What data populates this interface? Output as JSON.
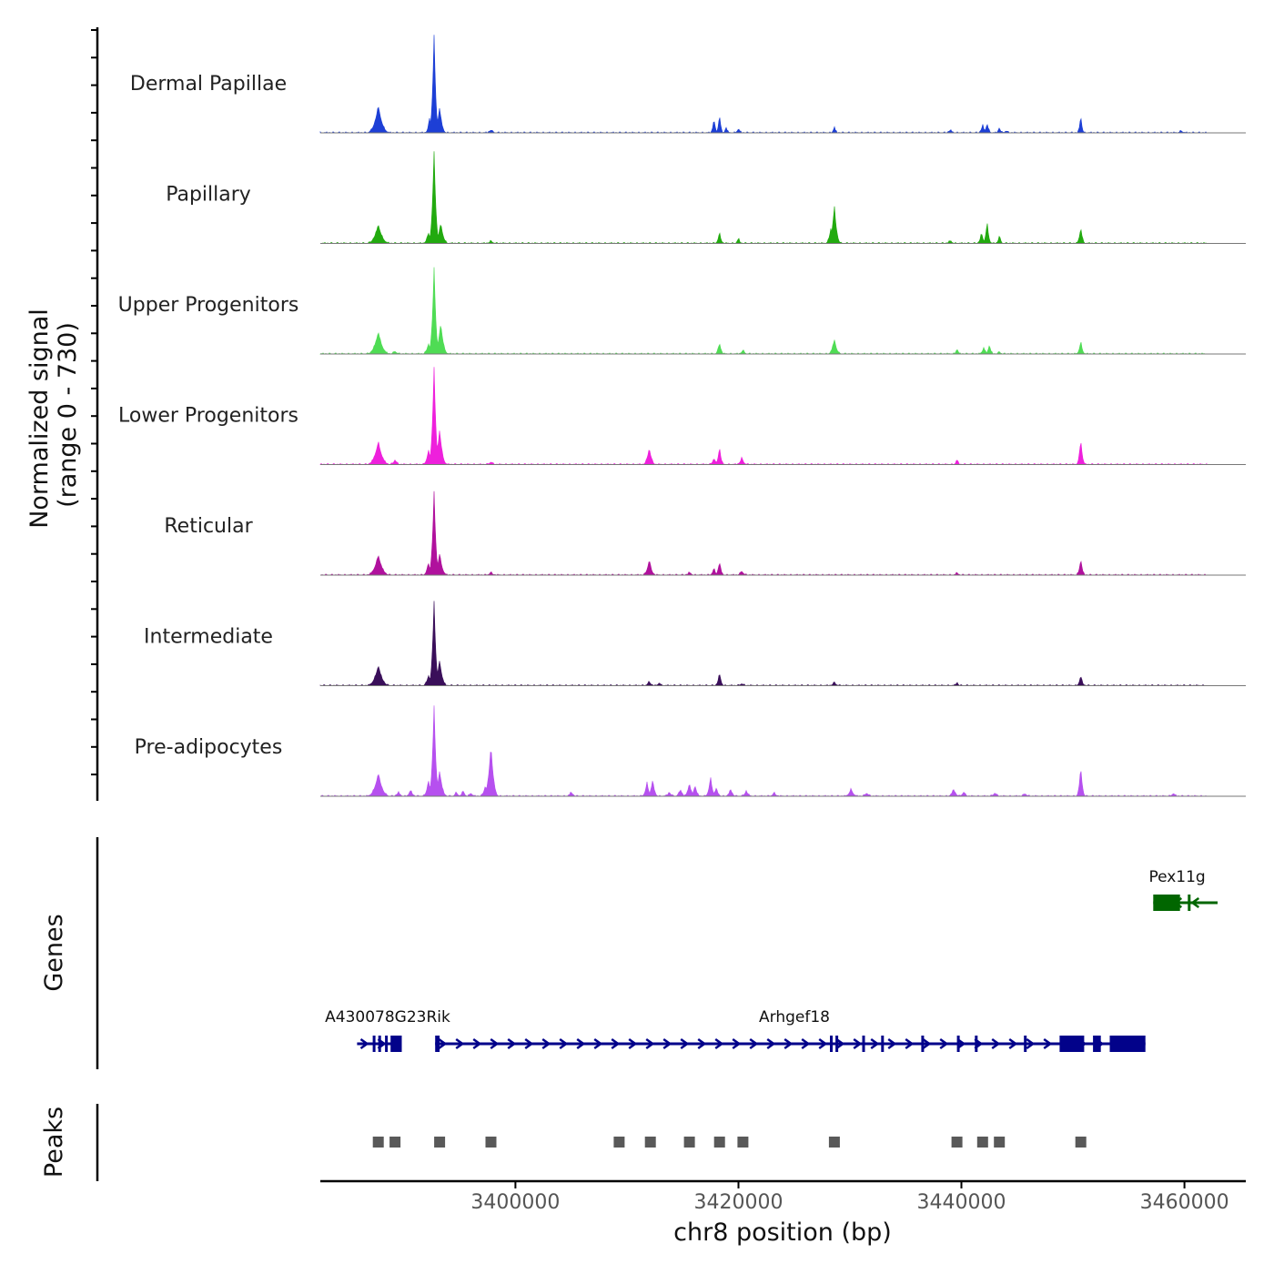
{
  "chart_data": {
    "type": "area",
    "title": "",
    "signal_axis": {
      "title_line1": "Normalized signal",
      "title_line2": "(range 0 - 730)",
      "ylim": [
        0,
        730
      ]
    },
    "genes_axis_title": "Genes",
    "peaks_axis_title": "Peaks",
    "xlabel": "chr8 position (bp)",
    "xlim": [
      3382500,
      3465500
    ],
    "x_ticks": [
      3400000,
      3420000,
      3440000,
      3460000
    ],
    "x_tick_labels": [
      "3400000",
      "3420000",
      "3440000",
      "3460000"
    ],
    "signal_range_bp": [
      3382500,
      3462000
    ],
    "tracks": [
      {
        "name": "Dermal Papillae",
        "color": "#1d3fd6",
        "peaks": [
          [
            3387700,
            200,
            600
          ],
          [
            3392700,
            730,
            280
          ],
          [
            3393200,
            190,
            350
          ],
          [
            3392300,
            110,
            250
          ],
          [
            3397800,
            22,
            300
          ],
          [
            3417800,
            110,
            200
          ],
          [
            3418300,
            140,
            200
          ],
          [
            3418900,
            40,
            200
          ],
          [
            3420000,
            30,
            250
          ],
          [
            3428600,
            45,
            200
          ],
          [
            3439000,
            20,
            300
          ],
          [
            3441900,
            60,
            250
          ],
          [
            3442300,
            70,
            250
          ],
          [
            3443400,
            40,
            200
          ],
          [
            3444000,
            15,
            250
          ],
          [
            3450700,
            130,
            200
          ],
          [
            3459700,
            15,
            300
          ]
        ]
      },
      {
        "name": "Papillary",
        "color": "#22aa0f",
        "peaks": [
          [
            3387700,
            140,
            600
          ],
          [
            3392700,
            690,
            300
          ],
          [
            3393300,
            150,
            400
          ],
          [
            3392200,
            80,
            300
          ],
          [
            3397800,
            18,
            300
          ],
          [
            3418300,
            80,
            250
          ],
          [
            3420000,
            40,
            200
          ],
          [
            3428600,
            280,
            350
          ],
          [
            3428300,
            120,
            300
          ],
          [
            3439000,
            20,
            300
          ],
          [
            3441800,
            80,
            250
          ],
          [
            3442300,
            160,
            250
          ],
          [
            3443400,
            60,
            200
          ],
          [
            3450700,
            120,
            250
          ]
        ]
      },
      {
        "name": "Upper Progenitors",
        "color": "#4fdc54",
        "peaks": [
          [
            3387700,
            165,
            600
          ],
          [
            3389200,
            20,
            300
          ],
          [
            3392700,
            650,
            300
          ],
          [
            3393300,
            230,
            400
          ],
          [
            3392200,
            80,
            300
          ],
          [
            3418300,
            85,
            250
          ],
          [
            3420400,
            30,
            250
          ],
          [
            3428600,
            110,
            350
          ],
          [
            3439600,
            40,
            200
          ],
          [
            3442000,
            50,
            250
          ],
          [
            3442500,
            65,
            250
          ],
          [
            3443400,
            15,
            250
          ],
          [
            3450700,
            95,
            250
          ]
        ]
      },
      {
        "name": "Lower Progenitors",
        "color": "#ee20dc",
        "peaks": [
          [
            3387700,
            170,
            600
          ],
          [
            3389200,
            35,
            300
          ],
          [
            3392700,
            730,
            300
          ],
          [
            3393200,
            260,
            400
          ],
          [
            3392200,
            110,
            300
          ],
          [
            3397800,
            20,
            300
          ],
          [
            3412000,
            125,
            350
          ],
          [
            3417800,
            50,
            250
          ],
          [
            3418300,
            130,
            250
          ],
          [
            3420300,
            50,
            300
          ],
          [
            3439600,
            40,
            200
          ],
          [
            3450700,
            190,
            250
          ]
        ]
      },
      {
        "name": "Reticular",
        "color": "#b0119d",
        "peaks": [
          [
            3387700,
            150,
            600
          ],
          [
            3392700,
            620,
            300
          ],
          [
            3393200,
            160,
            400
          ],
          [
            3392200,
            90,
            300
          ],
          [
            3397800,
            20,
            300
          ],
          [
            3412000,
            115,
            350
          ],
          [
            3415600,
            20,
            300
          ],
          [
            3417800,
            50,
            250
          ],
          [
            3418300,
            100,
            250
          ],
          [
            3420300,
            30,
            300
          ],
          [
            3439600,
            20,
            200
          ],
          [
            3450700,
            120,
            250
          ]
        ]
      },
      {
        "name": "Intermediate",
        "color": "#3a0f5a",
        "peaks": [
          [
            3387700,
            150,
            600
          ],
          [
            3392700,
            630,
            300
          ],
          [
            3393200,
            190,
            400
          ],
          [
            3392200,
            80,
            300
          ],
          [
            3412000,
            30,
            300
          ],
          [
            3412900,
            25,
            200
          ],
          [
            3418300,
            95,
            250
          ],
          [
            3420300,
            15,
            300
          ],
          [
            3428600,
            25,
            300
          ],
          [
            3439600,
            25,
            200
          ],
          [
            3450700,
            75,
            250
          ]
        ]
      },
      {
        "name": "Pre-adipocytes",
        "color": "#b650ef",
        "peaks": [
          [
            3387700,
            170,
            600
          ],
          [
            3389500,
            30,
            300
          ],
          [
            3390600,
            45,
            300
          ],
          [
            3392700,
            680,
            300
          ],
          [
            3393200,
            190,
            400
          ],
          [
            3392200,
            120,
            300
          ],
          [
            3394700,
            30,
            250
          ],
          [
            3395300,
            40,
            250
          ],
          [
            3396000,
            25,
            250
          ],
          [
            3397800,
            380,
            400
          ],
          [
            3397300,
            80,
            300
          ],
          [
            3405000,
            30,
            300
          ],
          [
            3411800,
            100,
            300
          ],
          [
            3412300,
            120,
            300
          ],
          [
            3413800,
            30,
            300
          ],
          [
            3414800,
            50,
            300
          ],
          [
            3415600,
            100,
            300
          ],
          [
            3416100,
            80,
            300
          ],
          [
            3417500,
            140,
            300
          ],
          [
            3418000,
            60,
            300
          ],
          [
            3419300,
            50,
            300
          ],
          [
            3420700,
            40,
            300
          ],
          [
            3423200,
            25,
            300
          ],
          [
            3430100,
            55,
            350
          ],
          [
            3431500,
            25,
            300
          ],
          [
            3439300,
            50,
            350
          ],
          [
            3440200,
            30,
            300
          ],
          [
            3443000,
            25,
            300
          ],
          [
            3445700,
            20,
            300
          ],
          [
            3450700,
            220,
            250
          ],
          [
            3459000,
            20,
            300
          ]
        ]
      }
    ],
    "genes": [
      {
        "name": "A430078G23Rik",
        "label": "A430078G23Rik",
        "row": "lower",
        "strand": "+",
        "start": 3385800,
        "end": 3389800,
        "color": "#02028a",
        "exons": [
          [
            3387200,
            3387400
          ],
          [
            3387700,
            3387800
          ],
          [
            3388300,
            3388400
          ],
          [
            3388800,
            3389800
          ]
        ]
      },
      {
        "name": "Arhgef18",
        "label": "Arhgef18",
        "row": "lower",
        "strand": "+",
        "start": 3392800,
        "end": 3456500,
        "color": "#02028a",
        "exons": [
          [
            3392800,
            3393200
          ],
          [
            3428200,
            3428400
          ],
          [
            3428700,
            3428900
          ],
          [
            3431100,
            3431300
          ],
          [
            3432800,
            3433000
          ],
          [
            3436400,
            3436600
          ],
          [
            3439600,
            3439800
          ],
          [
            3441200,
            3441400
          ],
          [
            3445600,
            3445800
          ],
          [
            3448800,
            3451000
          ],
          [
            3451800,
            3452500
          ],
          [
            3453300,
            3456500
          ]
        ]
      },
      {
        "name": "Pex11g",
        "label": "Pex11g",
        "row": "upper",
        "strand": "-",
        "start": 3457200,
        "end": 3461500,
        "color": "#016600",
        "exons": [
          [
            3457200,
            3459600
          ],
          [
            3460300,
            3460500
          ]
        ]
      }
    ],
    "peaks": [
      3387700,
      3389200,
      3393200,
      3397800,
      3409300,
      3412100,
      3415600,
      3418300,
      3420400,
      3428600,
      3439600,
      3441900,
      3443400,
      3450700
    ]
  }
}
